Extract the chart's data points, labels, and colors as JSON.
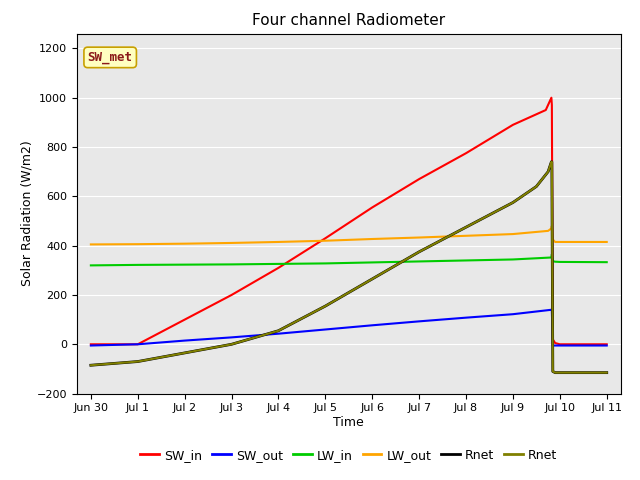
{
  "title": "Four channel Radiometer",
  "xlabel": "Time",
  "ylabel": "Solar Radiation (W/m2)",
  "ylim": [
    -200,
    1260
  ],
  "yticks": [
    -200,
    0,
    200,
    400,
    600,
    800,
    1000,
    1200
  ],
  "annotation_text": "SW_met",
  "annotation_bg": "#ffffc0",
  "annotation_border": "#8b1a1a",
  "background_color": "#e8e8e8",
  "lines": {
    "SW_in": {
      "color": "#ff0000",
      "lw": 1.5,
      "points": [
        [
          0,
          0
        ],
        [
          1,
          0
        ],
        [
          2,
          100
        ],
        [
          3,
          200
        ],
        [
          4,
          310
        ],
        [
          5,
          430
        ],
        [
          6,
          555
        ],
        [
          7,
          670
        ],
        [
          8,
          775
        ],
        [
          9,
          890
        ],
        [
          9.7,
          950
        ],
        [
          9.82,
          1000
        ],
        [
          9.83,
          970
        ],
        [
          9.85,
          20
        ],
        [
          9.9,
          5
        ],
        [
          10,
          0
        ],
        [
          11,
          0
        ]
      ]
    },
    "SW_out": {
      "color": "#0000ff",
      "lw": 1.5,
      "points": [
        [
          0,
          -5
        ],
        [
          1,
          0
        ],
        [
          2,
          15
        ],
        [
          3,
          28
        ],
        [
          4,
          43
        ],
        [
          5,
          60
        ],
        [
          6,
          77
        ],
        [
          7,
          93
        ],
        [
          8,
          108
        ],
        [
          9,
          122
        ],
        [
          9.82,
          140
        ],
        [
          9.83,
          135
        ],
        [
          9.85,
          -5
        ],
        [
          9.9,
          -5
        ],
        [
          10,
          -5
        ],
        [
          11,
          -5
        ]
      ]
    },
    "LW_in": {
      "color": "#00cc00",
      "lw": 1.5,
      "points": [
        [
          0,
          320
        ],
        [
          1,
          322
        ],
        [
          2,
          323
        ],
        [
          3,
          324
        ],
        [
          4,
          326
        ],
        [
          5,
          328
        ],
        [
          6,
          332
        ],
        [
          7,
          336
        ],
        [
          8,
          340
        ],
        [
          9,
          344
        ],
        [
          9.82,
          352
        ],
        [
          9.83,
          365
        ],
        [
          9.85,
          337
        ],
        [
          9.9,
          335
        ],
        [
          10,
          334
        ],
        [
          11,
          333
        ]
      ]
    },
    "LW_out": {
      "color": "#ffa500",
      "lw": 1.5,
      "points": [
        [
          0,
          405
        ],
        [
          1,
          406
        ],
        [
          2,
          408
        ],
        [
          3,
          411
        ],
        [
          4,
          415
        ],
        [
          5,
          420
        ],
        [
          6,
          427
        ],
        [
          7,
          433
        ],
        [
          8,
          440
        ],
        [
          9,
          447
        ],
        [
          9.75,
          460
        ],
        [
          9.82,
          470
        ],
        [
          9.83,
          480
        ],
        [
          9.85,
          425
        ],
        [
          9.9,
          415
        ],
        [
          10,
          415
        ],
        [
          11,
          415
        ]
      ]
    },
    "Rnet_black": {
      "color": "#000000",
      "lw": 2.0,
      "points": [
        [
          0,
          -85
        ],
        [
          1,
          -70
        ],
        [
          2,
          -35
        ],
        [
          3,
          0
        ],
        [
          4,
          55
        ],
        [
          5,
          155
        ],
        [
          6,
          265
        ],
        [
          7,
          375
        ],
        [
          8,
          475
        ],
        [
          9,
          575
        ],
        [
          9.5,
          640
        ],
        [
          9.75,
          700
        ],
        [
          9.82,
          740
        ],
        [
          9.83,
          740
        ],
        [
          9.85,
          -110
        ],
        [
          9.9,
          -115
        ],
        [
          10,
          -115
        ],
        [
          11,
          -115
        ]
      ]
    },
    "Rnet_olive": {
      "color": "#808000",
      "lw": 1.5,
      "points": [
        [
          0,
          -85
        ],
        [
          1,
          -70
        ],
        [
          2,
          -35
        ],
        [
          3,
          0
        ],
        [
          4,
          55
        ],
        [
          5,
          155
        ],
        [
          6,
          265
        ],
        [
          7,
          375
        ],
        [
          8,
          475
        ],
        [
          9,
          575
        ],
        [
          9.5,
          640
        ],
        [
          9.75,
          700
        ],
        [
          9.82,
          740
        ],
        [
          9.83,
          740
        ],
        [
          9.85,
          -110
        ],
        [
          9.9,
          -115
        ],
        [
          10,
          -115
        ],
        [
          11,
          -115
        ]
      ]
    }
  },
  "legend": [
    {
      "label": "SW_in",
      "color": "#ff0000"
    },
    {
      "label": "SW_out",
      "color": "#0000ff"
    },
    {
      "label": "LW_in",
      "color": "#00cc00"
    },
    {
      "label": "LW_out",
      "color": "#ffa500"
    },
    {
      "label": "Rnet",
      "color": "#000000"
    },
    {
      "label": "Rnet",
      "color": "#808000"
    }
  ],
  "x_tick_labels": [
    "Jun 30",
    "Jul 1",
    "Jul 2",
    "Jul 3",
    "Jul 4",
    "Jul 5",
    "Jul 6",
    "Jul 7",
    "Jul 8",
    "Jul 9",
    "Jul 10",
    "Jul 11"
  ],
  "x_tick_positions": [
    0,
    1,
    2,
    3,
    4,
    5,
    6,
    7,
    8,
    9,
    10,
    11
  ],
  "xlim": [
    -0.3,
    11.3
  ]
}
